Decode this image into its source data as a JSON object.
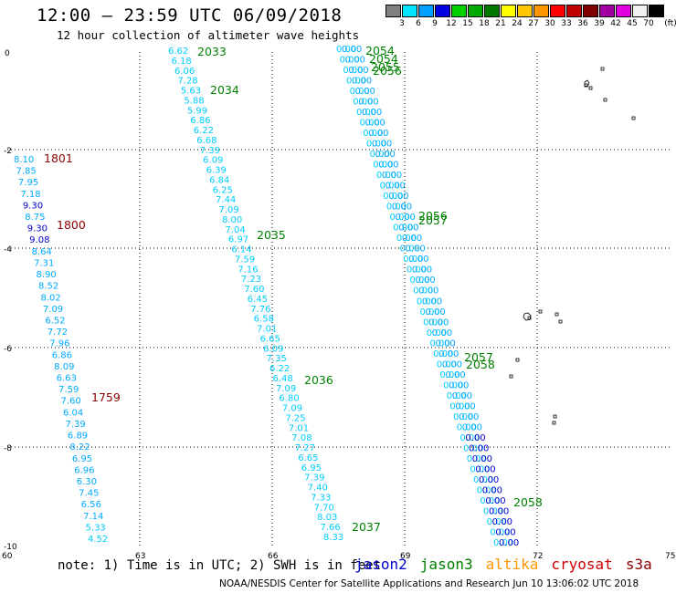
{
  "header": {
    "title": "12:00 – 23:59 UTC 06/09/2018",
    "subtitle": "12 hour collection of altimeter wave heights"
  },
  "color_scale": {
    "unit": "(ft)",
    "stops": [
      {
        "label": "3",
        "color": "#808080"
      },
      {
        "label": "6",
        "color": "#00e5ff"
      },
      {
        "label": "9",
        "color": "#00a0ff"
      },
      {
        "label": "12",
        "color": "#0000e0"
      },
      {
        "label": "15",
        "color": "#00d000"
      },
      {
        "label": "18",
        "color": "#00a800"
      },
      {
        "label": "21",
        "color": "#007800"
      },
      {
        "label": "24",
        "color": "#ffff00"
      },
      {
        "label": "27",
        "color": "#ffc800"
      },
      {
        "label": "30",
        "color": "#ff9600"
      },
      {
        "label": "33",
        "color": "#ff0000"
      },
      {
        "label": "36",
        "color": "#c00000"
      },
      {
        "label": "39",
        "color": "#800000"
      },
      {
        "label": "42",
        "color": "#a000a0"
      },
      {
        "label": "45",
        "color": "#e000e0"
      },
      {
        "label": "70",
        "color": "#f0f0f0"
      },
      {
        "label": "",
        "color": "#000000"
      }
    ]
  },
  "map": {
    "lon_ticks": [
      "60",
      "63",
      "66",
      "69",
      "72",
      "75"
    ],
    "lat_ticks": [
      "0",
      "-2",
      "-4",
      "-6",
      "-8",
      "-10"
    ]
  },
  "tracks": [
    {
      "id": "west",
      "values": [
        "8.10",
        "7.85",
        "7.95",
        "7.18",
        "9.30",
        "8.75",
        "9.30",
        "9.08",
        "8.64",
        "7.31",
        "8.90",
        "8.52",
        "8.02",
        "7.09",
        "6.52",
        "7.72",
        "7.96",
        "6.86",
        "8.09",
        "6.63",
        "7.59",
        "7.60",
        "6.04",
        "7.39",
        "6.89",
        "8.22",
        "6.95",
        "6.96",
        "6.30",
        "7.45",
        "6.56",
        "7.14",
        "5.33",
        "4.52"
      ],
      "colors": [
        "#00aaff",
        "#00aaff",
        "#00aaff",
        "#00aaff",
        "#0000cc",
        "#00aaff",
        "#0000cc",
        "#0000cc",
        "#00aaff",
        "#00aaff",
        "#00aaff",
        "#00aaff",
        "#00aaff",
        "#00aaff",
        "#00aaff",
        "#00aaff",
        "#00aaff",
        "#00aaff",
        "#00aaff",
        "#00aaff",
        "#00aaff",
        "#00aaff",
        "#00aaff",
        "#00aaff",
        "#00aaff",
        "#00aaff",
        "#00aaff",
        "#00aaff",
        "#00aaff",
        "#00aaff",
        "#00aaff",
        "#00aaff",
        "#00ccff",
        "#00ccff"
      ],
      "times": [
        {
          "label": "1801",
          "color": "#8b0000"
        },
        {
          "label": "1800",
          "color": "#8b0000"
        },
        {
          "label": "1759",
          "color": "#8b0000"
        }
      ]
    },
    {
      "id": "middle",
      "values": [
        "6.62",
        "6.18",
        "6.06",
        "7.28",
        "5.63",
        "5.88",
        "5.99",
        "6.86",
        "6.22",
        "6.68",
        "7.39",
        "6.09",
        "6.39",
        "6.84",
        "6.25",
        "7.44",
        "7.09",
        "8.00",
        "7.04",
        "6.97",
        "6.14",
        "7.59",
        "7.16",
        "7.23",
        "7.60",
        "6.45",
        "7.76",
        "6.58",
        "7.01",
        "6.65",
        "6.09",
        "7.35",
        "6.22",
        "6.48",
        "7.09",
        "6.80",
        "7.09",
        "7.25",
        "7.01",
        "7.08",
        "7.27",
        "6.65",
        "6.95",
        "7.39",
        "7.40",
        "7.33",
        "7.70",
        "8.03",
        "7.66",
        "8.33"
      ],
      "colors": [
        "#00ccff"
      ],
      "times": [
        {
          "label": "2033",
          "color": "#008000"
        },
        {
          "label": "2034",
          "color": "#008000"
        },
        {
          "label": "2035",
          "color": "#008000"
        },
        {
          "label": "2036",
          "color": "#008000"
        },
        {
          "label": "2037",
          "color": "#008000"
        }
      ]
    },
    {
      "id": "east",
      "times": [
        {
          "label": "2054",
          "color": "#008000"
        },
        {
          "label": "2054",
          "color": "#008000"
        },
        {
          "label": "2055",
          "color": "#008000"
        },
        {
          "label": "2056",
          "color": "#008000"
        },
        {
          "label": "2056",
          "color": "#008000"
        },
        {
          "label": "2057",
          "color": "#008000"
        },
        {
          "label": "2057",
          "color": "#008000"
        },
        {
          "label": "2058",
          "color": "#008000"
        },
        {
          "label": "2058",
          "color": "#008000"
        }
      ]
    }
  ],
  "footer": {
    "note": "note: 1) Time is in UTC; 2) SWH is in feet",
    "satellites": [
      {
        "label": "jason2",
        "color": "#0000cc"
      },
      {
        "label": "jason3",
        "color": "#008000"
      },
      {
        "label": "altika",
        "color": "#ff9600"
      },
      {
        "label": "cryosat",
        "color": "#cc0000"
      },
      {
        "label": "s3a",
        "color": "#8b0000"
      }
    ],
    "credit": "NOAA/NESDIS Center for Satellite Applications and Research    Jun 10 13:06:02 UTC 2018"
  }
}
